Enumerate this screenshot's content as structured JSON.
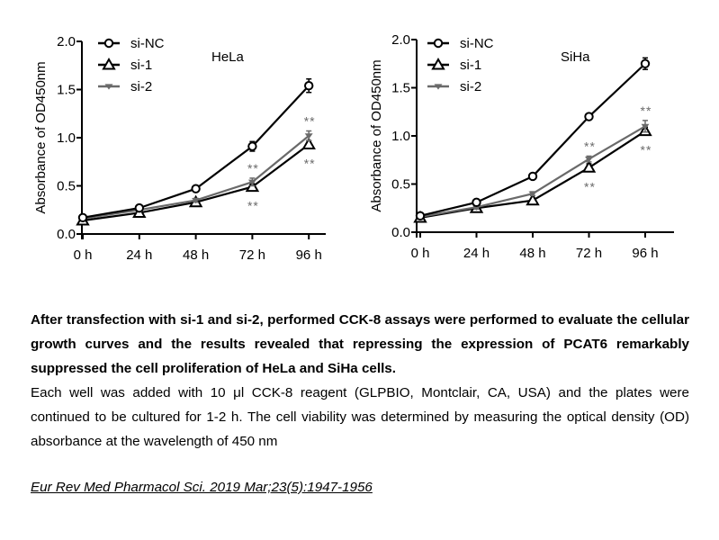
{
  "chart_data": [
    {
      "type": "line",
      "title": "HeLa",
      "xlabel": "",
      "ylabel": "Absorbance of OD450nm",
      "categories": [
        "0 h",
        "24 h",
        "48 h",
        "72 h",
        "96 h"
      ],
      "ylim": [
        0,
        2.0
      ],
      "yticks": [
        "0.0",
        "0.5",
        "1.0",
        "1.5",
        "2.0"
      ],
      "ytick_values": [
        0,
        0.5,
        1.0,
        1.5,
        2.0
      ],
      "grid": false,
      "legend": "top-left",
      "series": [
        {
          "name": "si-NC",
          "marker": "open-circle",
          "color": "#000000",
          "values": [
            0.17,
            0.27,
            0.47,
            0.91,
            1.54
          ],
          "errors": [
            0.02,
            0.02,
            0.03,
            0.05,
            0.07
          ]
        },
        {
          "name": "si-1",
          "marker": "open-triangle",
          "color": "#000000",
          "values": [
            0.14,
            0.22,
            0.33,
            0.49,
            0.93
          ],
          "errors": [
            0.01,
            0.02,
            0.02,
            0.03,
            0.04
          ]
        },
        {
          "name": "si-2",
          "marker": "down-triangle",
          "color": "#6a6a6a",
          "values": [
            0.16,
            0.25,
            0.35,
            0.54,
            1.02
          ],
          "errors": [
            0.01,
            0.02,
            0.02,
            0.04,
            0.05
          ]
        }
      ],
      "annotations": [
        {
          "text": "**",
          "x": "72 h",
          "position": "above",
          "series": "si-2"
        },
        {
          "text": "**",
          "x": "72 h",
          "position": "below",
          "series": "si-1"
        },
        {
          "text": "**",
          "x": "96 h",
          "position": "above",
          "series": "si-2"
        },
        {
          "text": "**",
          "x": "96 h",
          "position": "below",
          "series": "si-1"
        }
      ]
    },
    {
      "type": "line",
      "title": "SiHa",
      "xlabel": "",
      "ylabel": "Absorbance of OD450nm",
      "categories": [
        "0 h",
        "24 h",
        "48 h",
        "72 h",
        "96 h"
      ],
      "ylim": [
        0,
        2.0
      ],
      "yticks": [
        "0.0",
        "0.5",
        "1.0",
        "1.5",
        "2.0"
      ],
      "ytick_values": [
        0,
        0.5,
        1.0,
        1.5,
        2.0
      ],
      "grid": false,
      "legend": "top-left",
      "series": [
        {
          "name": "si-NC",
          "marker": "open-circle",
          "color": "#000000",
          "values": [
            0.17,
            0.31,
            0.58,
            1.2,
            1.75
          ],
          "errors": [
            0.01,
            0.02,
            0.02,
            0.03,
            0.06
          ]
        },
        {
          "name": "si-1",
          "marker": "open-triangle",
          "color": "#000000",
          "values": [
            0.15,
            0.25,
            0.33,
            0.67,
            1.05
          ],
          "errors": [
            0.01,
            0.02,
            0.02,
            0.04,
            0.04
          ]
        },
        {
          "name": "si-2",
          "marker": "down-triangle",
          "color": "#6a6a6a",
          "values": [
            0.16,
            0.26,
            0.4,
            0.76,
            1.1
          ],
          "errors": [
            0.01,
            0.02,
            0.02,
            0.03,
            0.06
          ]
        }
      ],
      "annotations": [
        {
          "text": "**",
          "x": "72 h",
          "position": "above",
          "series": "si-2"
        },
        {
          "text": "**",
          "x": "72 h",
          "position": "below",
          "series": "si-1"
        },
        {
          "text": "**",
          "x": "96 h",
          "position": "above",
          "series": "si-2"
        },
        {
          "text": "**",
          "x": "96 h",
          "position": "below",
          "series": "si-1"
        }
      ]
    }
  ],
  "caption": {
    "bold": "After transfection with si-1 and si-2, performed CCK-8 assays were performed to evaluate the cellular growth curves and the results revealed that repressing the expression of PCAT6 remarkably suppressed the cell proliferation of HeLa and SiHa cells.",
    "plain": "Each well was added with 10 μl CCK-8 reagent (GLPBIO, Montclair, CA, USA) and the plates were continued to be cultured for 1-2 h. The cell viability was determined by measuring the optical density (OD) absorbance at the wavelength of 450 nm"
  },
  "citation": "Eur Rev Med Pharmacol Sci. 2019 Mar;23(5):1947-1956"
}
